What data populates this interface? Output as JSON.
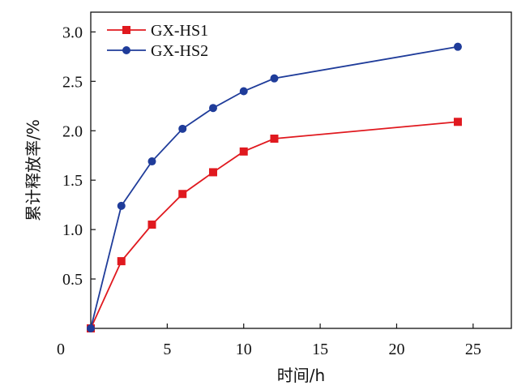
{
  "chart_data": {
    "type": "line",
    "title": "",
    "xlabel": "时间/h",
    "ylabel": "累计释放率/%",
    "xlim": [
      0,
      27.5
    ],
    "ylim": [
      0,
      3.2
    ],
    "xticks": [
      0,
      5,
      10,
      15,
      20,
      25
    ],
    "yticks": [
      0.5,
      1.0,
      1.5,
      2.0,
      2.5,
      3.0
    ],
    "xtick_labels": [
      "0",
      "5",
      "10",
      "15",
      "20",
      "25"
    ],
    "ytick_labels": [
      "0.5",
      "1.0",
      "1.5",
      "2.0",
      "2.5",
      "3.0"
    ],
    "grid": false,
    "legend_position": "top-left",
    "x": [
      0,
      2,
      4,
      6,
      8,
      10,
      12,
      24
    ],
    "series": [
      {
        "name": "GX-HS1",
        "color": "#e0191f",
        "marker": "square",
        "values": [
          0,
          0.68,
          1.05,
          1.36,
          1.58,
          1.79,
          1.92,
          2.09
        ]
      },
      {
        "name": "GX-HS2",
        "color": "#1f3c9a",
        "marker": "circle",
        "values": [
          0,
          1.24,
          1.69,
          2.02,
          2.23,
          2.4,
          2.53,
          2.85
        ]
      }
    ]
  }
}
